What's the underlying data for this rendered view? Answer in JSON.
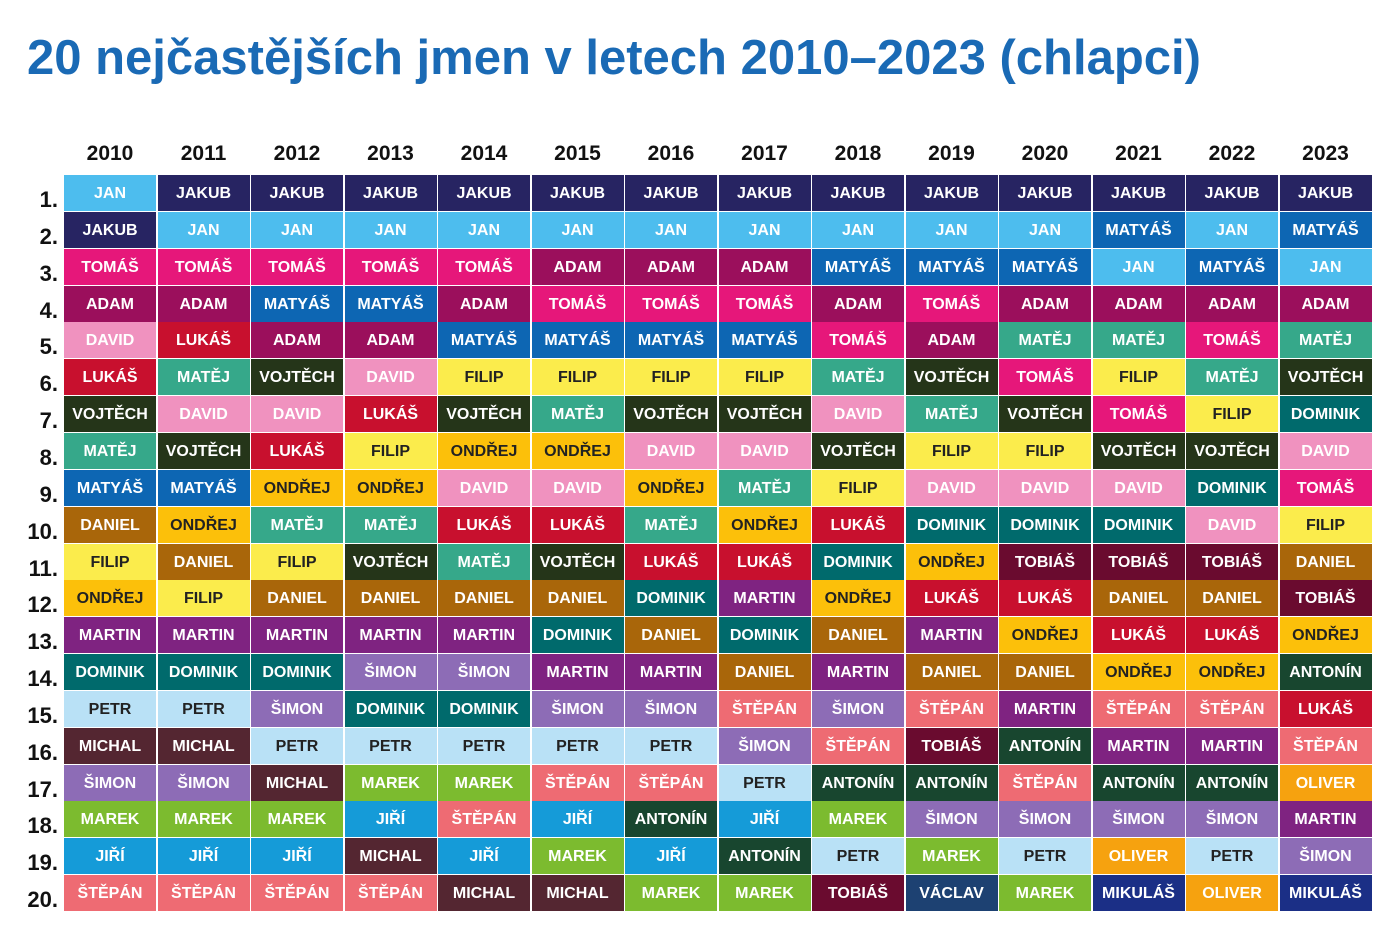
{
  "title": "20 nejčastějších jmen v letech 2010–2023 (chlapci)",
  "colors": {
    "title": "#1a6ab5",
    "names": {
      "JAN": "#4dbdee",
      "JAKUB": "#272462",
      "TOMÁŠ": "#e6177a",
      "ADAM": "#9b0f5c",
      "DAVID": "#f092bf",
      "LUKÁŠ": "#c8102e",
      "VOJTĚCH": "#253519",
      "MATĚJ": "#36a88a",
      "MATYÁŠ": "#0d66b3",
      "DANIEL": "#a9660a",
      "FILIP": "#fbec4c",
      "ONDŘEJ": "#fcc00a",
      "MARTIN": "#7f2381",
      "DOMINIK": "#006a6c",
      "PETR": "#b9e1f6",
      "MICHAL": "#542631",
      "ŠIMON": "#8d6cb6",
      "MAREK": "#7cbb2f",
      "JIŘÍ": "#159bd8",
      "ŠTĚPÁN": "#ee6b73",
      "ANTONÍN": "#18462f",
      "TOBIÁŠ": "#6a0b2f",
      "OLIVER": "#f6a20f",
      "MIKULÁŠ": "#1b2f86",
      "VÁCLAV": "#1d4172"
    },
    "dark_text_names": [
      "FILIP",
      "PETR",
      "ONDŘEJ"
    ]
  },
  "chart_data": {
    "type": "table",
    "title": "20 nejčastějších jmen v letech 2010–2023 (chlapci)",
    "years": [
      "2010",
      "2011",
      "2012",
      "2013",
      "2014",
      "2015",
      "2016",
      "2017",
      "2018",
      "2019",
      "2020",
      "2021",
      "2022",
      "2023"
    ],
    "ranks": [
      "1.",
      "2.",
      "3.",
      "4.",
      "5.",
      "6.",
      "7.",
      "8.",
      "9.",
      "10.",
      "11.",
      "12.",
      "13.",
      "14.",
      "15.",
      "16.",
      "17.",
      "18.",
      "19.",
      "20."
    ],
    "columns": [
      [
        "JAN",
        "JAKUB",
        "TOMÁŠ",
        "ADAM",
        "DAVID",
        "LUKÁŠ",
        "VOJTĚCH",
        "MATĚJ",
        "MATYÁŠ",
        "DANIEL",
        "FILIP",
        "ONDŘEJ",
        "MARTIN",
        "DOMINIK",
        "PETR",
        "MICHAL",
        "ŠIMON",
        "MAREK",
        "JIŘÍ",
        "ŠTĚPÁN"
      ],
      [
        "JAKUB",
        "JAN",
        "TOMÁŠ",
        "ADAM",
        "LUKÁŠ",
        "MATĚJ",
        "DAVID",
        "VOJTĚCH",
        "MATYÁŠ",
        "ONDŘEJ",
        "DANIEL",
        "FILIP",
        "MARTIN",
        "DOMINIK",
        "PETR",
        "MICHAL",
        "ŠIMON",
        "MAREK",
        "JIŘÍ",
        "ŠTĚPÁN"
      ],
      [
        "JAKUB",
        "JAN",
        "TOMÁŠ",
        "MATYÁŠ",
        "ADAM",
        "VOJTĚCH",
        "DAVID",
        "LUKÁŠ",
        "ONDŘEJ",
        "MATĚJ",
        "FILIP",
        "DANIEL",
        "MARTIN",
        "DOMINIK",
        "ŠIMON",
        "PETR",
        "MICHAL",
        "MAREK",
        "JIŘÍ",
        "ŠTĚPÁN"
      ],
      [
        "JAKUB",
        "JAN",
        "TOMÁŠ",
        "MATYÁŠ",
        "ADAM",
        "DAVID",
        "LUKÁŠ",
        "FILIP",
        "ONDŘEJ",
        "MATĚJ",
        "VOJTĚCH",
        "DANIEL",
        "MARTIN",
        "ŠIMON",
        "DOMINIK",
        "PETR",
        "MAREK",
        "JIŘÍ",
        "MICHAL",
        "ŠTĚPÁN"
      ],
      [
        "JAKUB",
        "JAN",
        "TOMÁŠ",
        "ADAM",
        "MATYÁŠ",
        "FILIP",
        "VOJTĚCH",
        "ONDŘEJ",
        "DAVID",
        "LUKÁŠ",
        "MATĚJ",
        "DANIEL",
        "MARTIN",
        "ŠIMON",
        "DOMINIK",
        "PETR",
        "MAREK",
        "ŠTĚPÁN",
        "JIŘÍ",
        "MICHAL"
      ],
      [
        "JAKUB",
        "JAN",
        "ADAM",
        "TOMÁŠ",
        "MATYÁŠ",
        "FILIP",
        "MATĚJ",
        "ONDŘEJ",
        "DAVID",
        "LUKÁŠ",
        "VOJTĚCH",
        "DANIEL",
        "DOMINIK",
        "MARTIN",
        "ŠIMON",
        "PETR",
        "ŠTĚPÁN",
        "JIŘÍ",
        "MAREK",
        "MICHAL"
      ],
      [
        "JAKUB",
        "JAN",
        "ADAM",
        "TOMÁŠ",
        "MATYÁŠ",
        "FILIP",
        "VOJTĚCH",
        "DAVID",
        "ONDŘEJ",
        "MATĚJ",
        "LUKÁŠ",
        "DOMINIK",
        "DANIEL",
        "MARTIN",
        "ŠIMON",
        "PETR",
        "ŠTĚPÁN",
        "ANTONÍN",
        "JIŘÍ",
        "MAREK"
      ],
      [
        "JAKUB",
        "JAN",
        "ADAM",
        "TOMÁŠ",
        "MATYÁŠ",
        "FILIP",
        "VOJTĚCH",
        "DAVID",
        "MATĚJ",
        "ONDŘEJ",
        "LUKÁŠ",
        "MARTIN",
        "DOMINIK",
        "DANIEL",
        "ŠTĚPÁN",
        "ŠIMON",
        "PETR",
        "JIŘÍ",
        "ANTONÍN",
        "MAREK"
      ],
      [
        "JAKUB",
        "JAN",
        "MATYÁŠ",
        "ADAM",
        "TOMÁŠ",
        "MATĚJ",
        "DAVID",
        "VOJTĚCH",
        "FILIP",
        "LUKÁŠ",
        "DOMINIK",
        "ONDŘEJ",
        "DANIEL",
        "MARTIN",
        "ŠIMON",
        "ŠTĚPÁN",
        "ANTONÍN",
        "MAREK",
        "PETR",
        "TOBIÁŠ"
      ],
      [
        "JAKUB",
        "JAN",
        "MATYÁŠ",
        "TOMÁŠ",
        "ADAM",
        "VOJTĚCH",
        "MATĚJ",
        "FILIP",
        "DAVID",
        "DOMINIK",
        "ONDŘEJ",
        "LUKÁŠ",
        "MARTIN",
        "DANIEL",
        "ŠTĚPÁN",
        "TOBIÁŠ",
        "ANTONÍN",
        "ŠIMON",
        "MAREK",
        "VÁCLAV"
      ],
      [
        "JAKUB",
        "JAN",
        "MATYÁŠ",
        "ADAM",
        "MATĚJ",
        "TOMÁŠ",
        "VOJTĚCH",
        "FILIP",
        "DAVID",
        "DOMINIK",
        "TOBIÁŠ",
        "LUKÁŠ",
        "ONDŘEJ",
        "DANIEL",
        "MARTIN",
        "ANTONÍN",
        "ŠTĚPÁN",
        "ŠIMON",
        "PETR",
        "MAREK"
      ],
      [
        "JAKUB",
        "MATYÁŠ",
        "JAN",
        "ADAM",
        "MATĚJ",
        "FILIP",
        "TOMÁŠ",
        "VOJTĚCH",
        "DAVID",
        "DOMINIK",
        "TOBIÁŠ",
        "DANIEL",
        "LUKÁŠ",
        "ONDŘEJ",
        "ŠTĚPÁN",
        "MARTIN",
        "ANTONÍN",
        "ŠIMON",
        "OLIVER",
        "MIKULÁŠ"
      ],
      [
        "JAKUB",
        "JAN",
        "MATYÁŠ",
        "ADAM",
        "TOMÁŠ",
        "MATĚJ",
        "FILIP",
        "VOJTĚCH",
        "DOMINIK",
        "DAVID",
        "TOBIÁŠ",
        "DANIEL",
        "LUKÁŠ",
        "ONDŘEJ",
        "ŠTĚPÁN",
        "MARTIN",
        "ANTONÍN",
        "ŠIMON",
        "PETR",
        "OLIVER"
      ],
      [
        "JAKUB",
        "MATYÁŠ",
        "JAN",
        "ADAM",
        "MATĚJ",
        "VOJTĚCH",
        "DOMINIK",
        "DAVID",
        "TOMÁŠ",
        "FILIP",
        "DANIEL",
        "TOBIÁŠ",
        "ONDŘEJ",
        "ANTONÍN",
        "LUKÁŠ",
        "ŠTĚPÁN",
        "OLIVER",
        "MARTIN",
        "ŠIMON",
        "MIKULÁŠ"
      ]
    ]
  }
}
